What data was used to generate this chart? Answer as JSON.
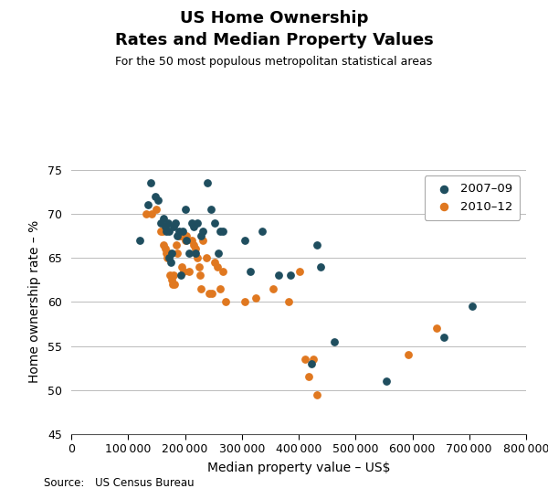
{
  "title_line1": "US Home Ownership",
  "title_line2": "Rates and Median Property Values",
  "subtitle": "For the 50 most populous metropolitan statistical areas",
  "xlabel": "Median property value – US$",
  "ylabel": "Home ownership rate – %",
  "source": "Source: US Census Bureau",
  "xlim": [
    0,
    800000
  ],
  "ylim": [
    45,
    75
  ],
  "xticks": [
    0,
    100000,
    200000,
    300000,
    400000,
    500000,
    600000,
    700000,
    800000
  ],
  "yticks": [
    45,
    50,
    55,
    60,
    65,
    70,
    75
  ],
  "color_2007": "#1f4e5f",
  "color_2010": "#e07820",
  "legend_label_2007": "2007–09",
  "legend_label_2010": "2010–12",
  "data_2007": [
    [
      120000,
      67.0
    ],
    [
      135000,
      71.0
    ],
    [
      140000,
      73.5
    ],
    [
      147000,
      72.0
    ],
    [
      152000,
      71.5
    ],
    [
      158000,
      69.0
    ],
    [
      162000,
      69.5
    ],
    [
      165000,
      68.5
    ],
    [
      167000,
      68.0
    ],
    [
      170000,
      69.0
    ],
    [
      172000,
      68.0
    ],
    [
      172000,
      65.0
    ],
    [
      175000,
      64.5
    ],
    [
      177000,
      65.5
    ],
    [
      180000,
      68.5
    ],
    [
      183000,
      69.0
    ],
    [
      186000,
      67.5
    ],
    [
      190000,
      68.0
    ],
    [
      192000,
      63.0
    ],
    [
      196000,
      68.0
    ],
    [
      200000,
      70.5
    ],
    [
      202000,
      67.0
    ],
    [
      207000,
      65.5
    ],
    [
      212000,
      69.0
    ],
    [
      215000,
      68.5
    ],
    [
      218000,
      65.5
    ],
    [
      222000,
      69.0
    ],
    [
      228000,
      67.5
    ],
    [
      232000,
      68.0
    ],
    [
      240000,
      73.5
    ],
    [
      246000,
      70.5
    ],
    [
      252000,
      69.0
    ],
    [
      258000,
      65.5
    ],
    [
      262000,
      68.0
    ],
    [
      267000,
      68.0
    ],
    [
      305000,
      67.0
    ],
    [
      315000,
      63.5
    ],
    [
      335000,
      68.0
    ],
    [
      365000,
      63.0
    ],
    [
      385000,
      63.0
    ],
    [
      422000,
      53.0
    ],
    [
      432000,
      66.5
    ],
    [
      438000,
      64.0
    ],
    [
      462000,
      55.5
    ],
    [
      555000,
      51.0
    ],
    [
      655000,
      56.0
    ],
    [
      705000,
      59.5
    ]
  ],
  "data_2010": [
    [
      132000,
      70.0
    ],
    [
      142000,
      70.0
    ],
    [
      150000,
      70.5
    ],
    [
      157000,
      68.0
    ],
    [
      160000,
      68.0
    ],
    [
      163000,
      66.5
    ],
    [
      165000,
      66.0
    ],
    [
      167000,
      65.5
    ],
    [
      168000,
      65.0
    ],
    [
      172000,
      65.5
    ],
    [
      173000,
      63.0
    ],
    [
      176000,
      62.5
    ],
    [
      178000,
      62.0
    ],
    [
      180000,
      63.0
    ],
    [
      182000,
      62.0
    ],
    [
      185000,
      66.5
    ],
    [
      187000,
      65.5
    ],
    [
      190000,
      67.5
    ],
    [
      192000,
      67.5
    ],
    [
      195000,
      64.0
    ],
    [
      197000,
      63.5
    ],
    [
      200000,
      67.0
    ],
    [
      202000,
      67.5
    ],
    [
      207000,
      63.5
    ],
    [
      212000,
      67.0
    ],
    [
      216000,
      66.5
    ],
    [
      218000,
      66.0
    ],
    [
      222000,
      65.0
    ],
    [
      225000,
      64.0
    ],
    [
      227000,
      63.0
    ],
    [
      228000,
      61.5
    ],
    [
      232000,
      67.0
    ],
    [
      237000,
      65.0
    ],
    [
      242000,
      61.0
    ],
    [
      247000,
      61.0
    ],
    [
      252000,
      64.5
    ],
    [
      257000,
      64.0
    ],
    [
      262000,
      61.5
    ],
    [
      267000,
      63.5
    ],
    [
      272000,
      60.0
    ],
    [
      305000,
      60.0
    ],
    [
      325000,
      60.5
    ],
    [
      355000,
      61.5
    ],
    [
      382000,
      60.0
    ],
    [
      402000,
      63.5
    ],
    [
      412000,
      53.5
    ],
    [
      418000,
      51.5
    ],
    [
      425000,
      53.5
    ],
    [
      432000,
      49.5
    ],
    [
      592000,
      54.0
    ],
    [
      642000,
      57.0
    ]
  ]
}
